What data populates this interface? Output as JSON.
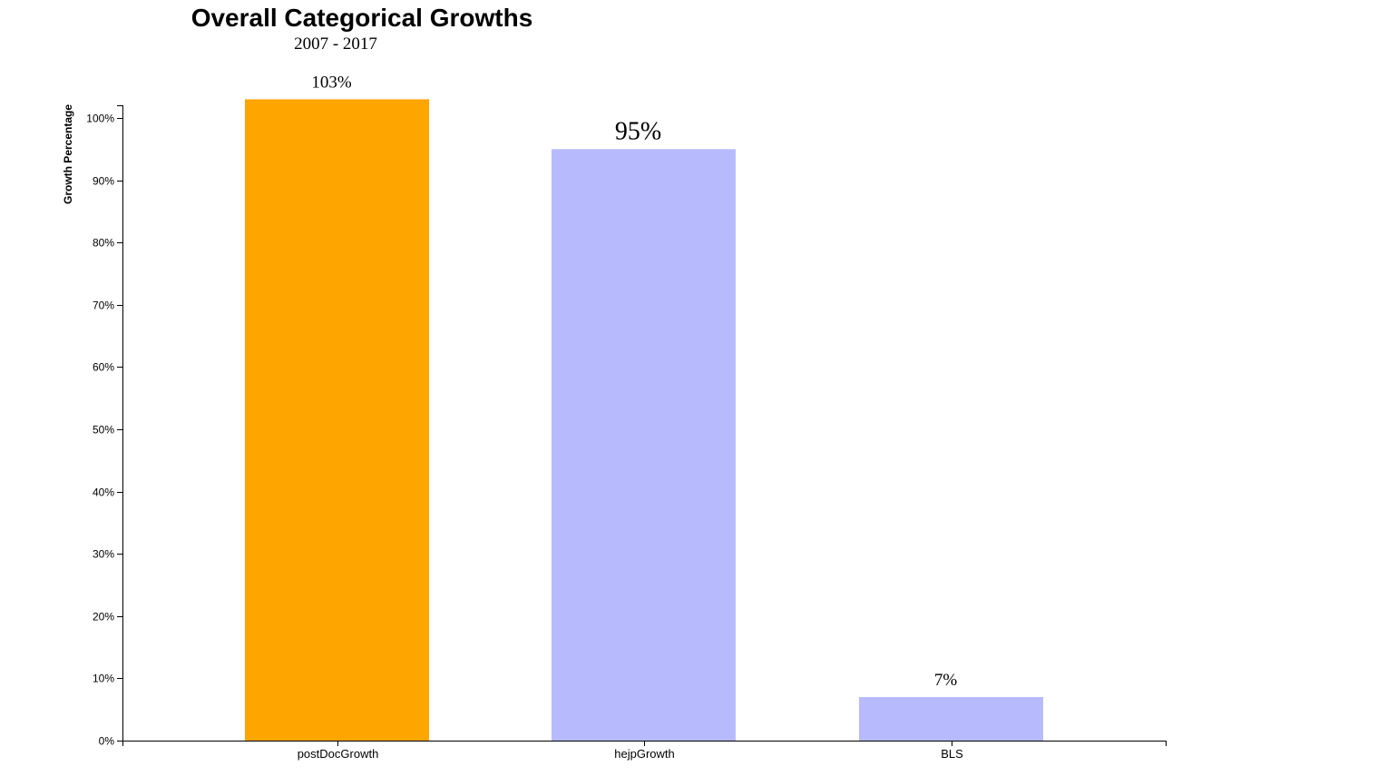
{
  "chart_data": {
    "type": "bar",
    "title": "Overall Categorical Growths",
    "subtitle": "2007 - 2017",
    "ylabel": "Growth Percentage",
    "xlabel": "",
    "categories": [
      "postDocGrowth",
      "hejpGrowth",
      "BLS"
    ],
    "values": [
      103,
      95,
      7
    ],
    "value_labels": [
      "103%",
      "95%",
      "7%"
    ],
    "bar_colors": [
      "#ffa500",
      "#b7bbfd",
      "#b7bbfd"
    ],
    "ylim": [
      0,
      102
    ],
    "yticks": [
      0,
      10,
      20,
      30,
      40,
      50,
      60,
      70,
      80,
      90,
      100
    ],
    "ytick_labels": [
      "0%",
      "10%",
      "20%",
      "30%",
      "40%",
      "50%",
      "60%",
      "70%",
      "80%",
      "90%",
      "100%"
    ],
    "grid": false,
    "legend": "none"
  }
}
